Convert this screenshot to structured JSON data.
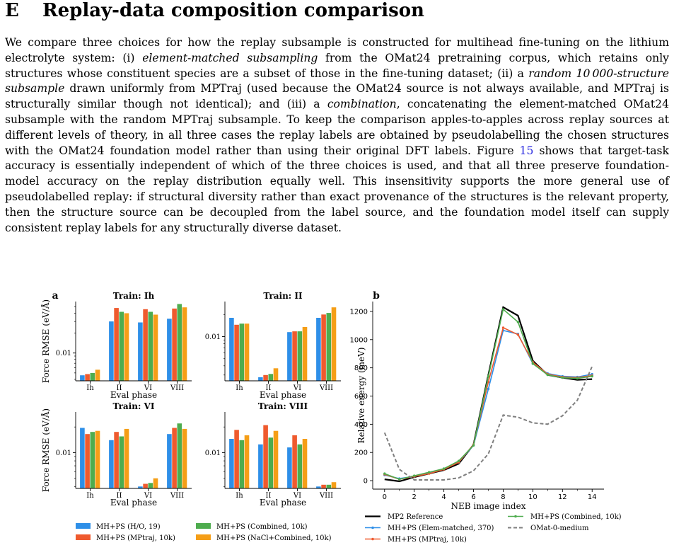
{
  "section": {
    "number": "E",
    "title": "Replay-data composition comparison"
  },
  "paragraph": {
    "p1": "We compare three choices for how the replay subsample is constructed for multihead fine-tuning on the lithium electrolyte system: (i) ",
    "em1": "element-matched subsampling",
    "p2": " from the OMat24 pretraining corpus, which retains only structures whose constituent species are a subset of those in the fine-tuning dataset; (ii) a ",
    "em2": "random 10 000-structure subsample",
    "p3": " drawn uniformly from MPTraj (used because the OMat24 source is not always available, and MPTraj is structurally similar though not identical); and (iii) a ",
    "em3": "combination",
    "p4": ", concatenating the element-matched OMat24 subsample with the random MPTraj subsample. To keep the comparison apples-to-apples across replay sources at different levels of theory, in all three cases the replay labels are obtained by pseudolabelling the chosen structures with the OMat24 foundation model rather than using their original DFT labels. Figure ",
    "ref": "15",
    "p5": " shows that target-task accuracy is essentially independent of which of the three choices is used, and that all three preserve foundation-model accuracy on the replay distribution equally well. This insensitivity supports the more general use of pseudolabelled replay: if structural diversity rather than exact provenance of the structures is the relevant property, then the structure source can be decoupled from the label source, and the foundation model itself can supply consistent replay labels for any structurally diverse dataset."
  },
  "colors": {
    "blue": "#2e8fe8",
    "red": "#ef5a2e",
    "green": "#4eac4e",
    "orange": "#f59e17",
    "black": "#000000",
    "gray": "#7f7f7f"
  },
  "chart_data": [
    {
      "type": "bar",
      "panel_label": "a",
      "title": "Train: Ih",
      "ylabel": "Force RMSE (eV/Å)",
      "xlabel": "Eval phase",
      "yscale": "log",
      "ylim": [
        0.0038,
        0.06
      ],
      "yticks": [
        {
          "value": 0.01,
          "label": "0.01"
        }
      ],
      "categories": [
        "Ih",
        "II",
        "VI",
        "VIII"
      ],
      "series": [
        {
          "name": "MH+PS (H/O, 19)",
          "color": "#2e8fe8",
          "values": [
            0.0046,
            0.03,
            0.029,
            0.033
          ]
        },
        {
          "name": "MH+PS (MPtraj, 10k)",
          "color": "#ef5a2e",
          "values": [
            0.0048,
            0.048,
            0.046,
            0.047
          ]
        },
        {
          "name": "MH+PS (Combined, 10k)",
          "color": "#4eac4e",
          "values": [
            0.005,
            0.042,
            0.042,
            0.055
          ]
        },
        {
          "name": "MH+PS (NaCl+Combined, 10k)",
          "color": "#f59e17",
          "values": [
            0.0056,
            0.04,
            0.038,
            0.049
          ]
        }
      ]
    },
    {
      "type": "bar",
      "title": "Train: II",
      "xlabel": "Eval phase",
      "yscale": "log",
      "ylim": [
        0.0025,
        0.03
      ],
      "yticks": [
        {
          "value": 0.01,
          "label": "0.01"
        }
      ],
      "categories": [
        "Ih",
        "II",
        "VI",
        "VIII"
      ],
      "series": [
        {
          "name": "MH+PS (H/O, 19)",
          "color": "#2e8fe8",
          "values": [
            0.018,
            0.0028,
            0.0115,
            0.018
          ]
        },
        {
          "name": "MH+PS (MPtraj, 10k)",
          "color": "#ef5a2e",
          "values": [
            0.0145,
            0.003,
            0.0118,
            0.02
          ]
        },
        {
          "name": "MH+PS (Combined, 10k)",
          "color": "#4eac4e",
          "values": [
            0.015,
            0.0031,
            0.0118,
            0.021
          ]
        },
        {
          "name": "MH+PS (NaCl+Combined, 10k)",
          "color": "#f59e17",
          "values": [
            0.015,
            0.0037,
            0.0135,
            0.025
          ]
        }
      ]
    },
    {
      "type": "bar",
      "title": "Train: VI",
      "ylabel": "Force RMSE (eV/Å)",
      "xlabel": "Eval phase",
      "yscale": "log",
      "ylim": [
        0.0038,
        0.03
      ],
      "yticks": [
        {
          "value": 0.01,
          "label": "0.01"
        }
      ],
      "categories": [
        "Ih",
        "II",
        "VI",
        "VIII"
      ],
      "series": [
        {
          "name": "MH+PS (H/O, 19)",
          "color": "#2e8fe8",
          "values": [
            0.0195,
            0.014,
            0.004,
            0.0165
          ]
        },
        {
          "name": "MH+PS (MPtraj, 10k)",
          "color": "#ef5a2e",
          "values": [
            0.0165,
            0.0175,
            0.0043,
            0.0195
          ]
        },
        {
          "name": "MH+PS (Combined, 10k)",
          "color": "#4eac4e",
          "values": [
            0.0175,
            0.0155,
            0.0044,
            0.022
          ]
        },
        {
          "name": "MH+PS (NaCl+Combined, 10k)",
          "color": "#f59e17",
          "values": [
            0.018,
            0.019,
            0.005,
            0.019
          ]
        }
      ]
    },
    {
      "type": "bar",
      "title": "Train: VIII",
      "xlabel": "Eval phase",
      "yscale": "log",
      "ylim": [
        0.0038,
        0.03
      ],
      "yticks": [
        {
          "value": 0.01,
          "label": "0.01"
        }
      ],
      "categories": [
        "Ih",
        "II",
        "VI",
        "VIII"
      ],
      "series": [
        {
          "name": "MH+PS (H/O, 19)",
          "color": "#2e8fe8",
          "values": [
            0.0145,
            0.0125,
            0.0115,
            0.004
          ]
        },
        {
          "name": "MH+PS (MPtraj, 10k)",
          "color": "#ef5a2e",
          "values": [
            0.0185,
            0.021,
            0.016,
            0.0042
          ]
        },
        {
          "name": "MH+PS (Combined, 10k)",
          "color": "#4eac4e",
          "values": [
            0.014,
            0.015,
            0.0125,
            0.0042
          ]
        },
        {
          "name": "MH+PS (NaCl+Combined, 10k)",
          "color": "#f59e17",
          "values": [
            0.016,
            0.018,
            0.0145,
            0.0045
          ]
        }
      ]
    },
    {
      "type": "line",
      "panel_label": "b",
      "xlabel": "NEB image index",
      "ylabel": "Relative energy (meV)",
      "xlim": [
        -0.8,
        14.8
      ],
      "ylim": [
        -60,
        1270
      ],
      "xticks": [
        0,
        2,
        4,
        6,
        8,
        10,
        12,
        14
      ],
      "yticks": [
        0,
        200,
        400,
        600,
        800,
        1000,
        1200
      ],
      "x": [
        0,
        1,
        2,
        3,
        4,
        5,
        6,
        7,
        8,
        9,
        10,
        11,
        12,
        13,
        14
      ],
      "series": [
        {
          "name": "MP2 Reference",
          "color": "#000000",
          "style": "solid",
          "marker": "none",
          "values": [
            10,
            -5,
            25,
            50,
            75,
            120,
            255,
            750,
            1230,
            1170,
            850,
            750,
            730,
            715,
            720
          ]
        },
        {
          "name": "MH+PS (Elem-matched, 370)",
          "color": "#2e8fe8",
          "style": "solid",
          "marker": "dot",
          "values": [
            40,
            15,
            30,
            55,
            85,
            130,
            250,
            650,
            1065,
            1040,
            830,
            760,
            740,
            735,
            755
          ]
        },
        {
          "name": "MH+PS (MPtraj, 10k)",
          "color": "#ef5a2e",
          "style": "solid",
          "marker": "dot",
          "values": [
            45,
            10,
            30,
            50,
            80,
            130,
            255,
            700,
            1085,
            1035,
            840,
            755,
            735,
            730,
            745
          ]
        },
        {
          "name": "MH+PS (Combined, 10k)",
          "color": "#4eac4e",
          "style": "solid",
          "marker": "dot",
          "values": [
            50,
            10,
            35,
            60,
            85,
            140,
            250,
            740,
            1215,
            1125,
            830,
            750,
            730,
            725,
            740
          ]
        },
        {
          "name": "OMat-0-medium",
          "color": "#7f7f7f",
          "style": "dashed",
          "marker": "none",
          "values": [
            340,
            80,
            5,
            5,
            5,
            20,
            70,
            190,
            465,
            450,
            410,
            400,
            460,
            570,
            810
          ]
        }
      ]
    }
  ],
  "legend_bars": [
    "MH+PS (H/O, 19)",
    "MH+PS (Combined, 10k)",
    "MH+PS (MPtraj, 10k)",
    "MH+PS (NaCl+Combined, 10k)"
  ],
  "legend_lines": [
    "MP2 Reference",
    "MH+PS (Combined, 10k)",
    "MH+PS (Elem-matched, 370)",
    "OMat-0-medium",
    "MH+PS (MPtraj, 10k)"
  ]
}
